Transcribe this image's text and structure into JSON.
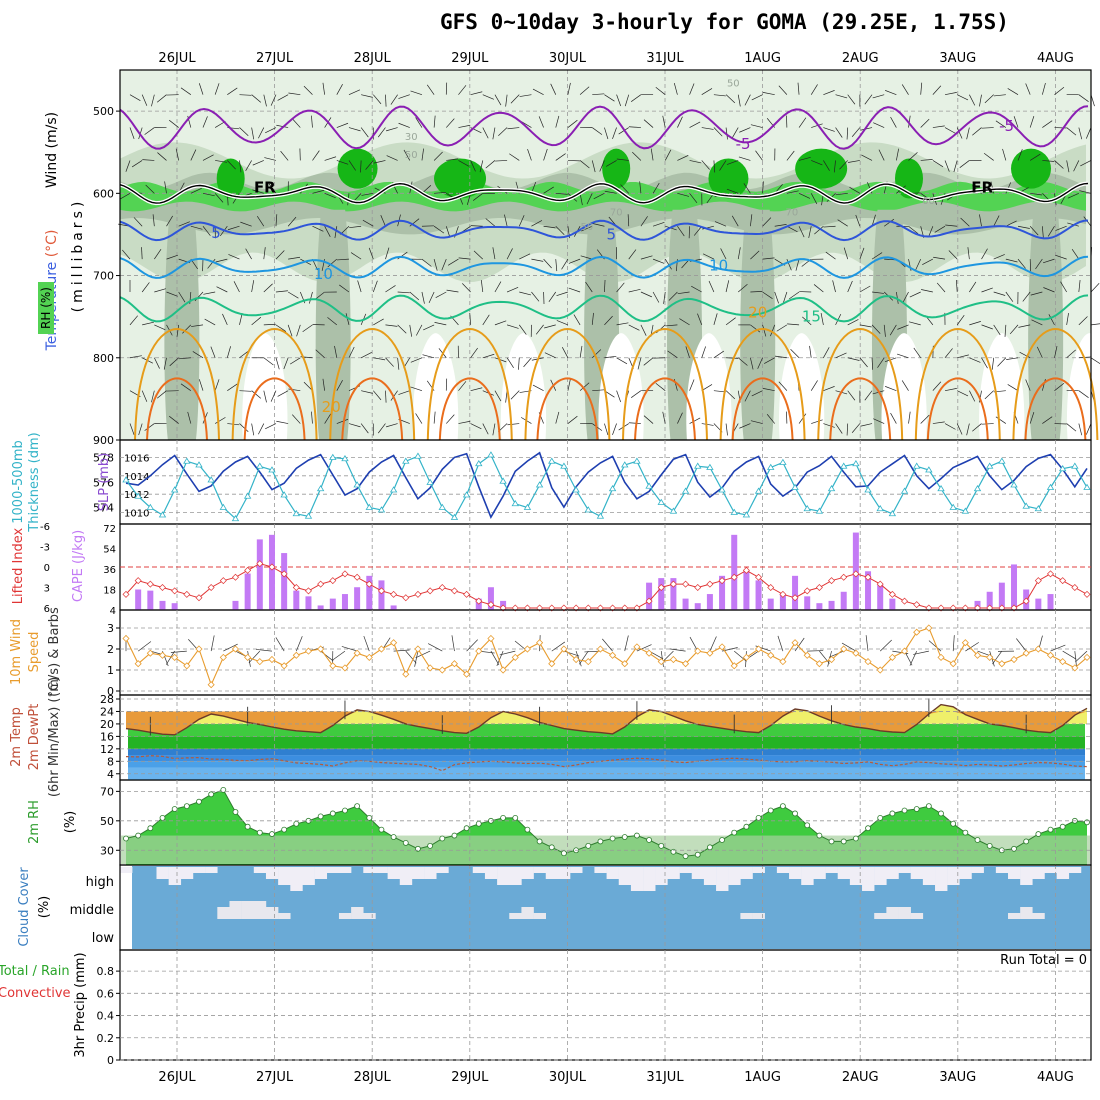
{
  "title": "GFS 0~10day 3-hourly for GOMA (29.25E, 1.75S)",
  "colors": {
    "grid": "#999999",
    "rh_light": "#e6f1e4",
    "rh_mid": "#c9dcc5",
    "rh_dark": "#acc0a9",
    "rh_green": "#53d353",
    "rh_bright": "#16b616",
    "temp_violet": "#8a1fb3",
    "temp_blue": "#2e55d9",
    "temp_sky": "#1e96e0",
    "temp_teal": "#1fbf86",
    "temp_amber": "#e69c1a",
    "temp_orange": "#ea6d1c",
    "freezing": "#000000",
    "slp": "#1e3fb0",
    "thickness": "#33b3c8",
    "cape": "#c37af5",
    "lifted": "#e03535",
    "wind10": "#e89c2e",
    "tmax_fill": "#e89a3a",
    "tmin_fill": "#efef6a",
    "td_fill": "#3c8ee0",
    "t_green": "#3fcb3f",
    "rh2m": "#3fcb3f",
    "cloud_sky": "#6aaad6",
    "cloud_white": "#f0eef6"
  },
  "chart_data": [
    {
      "type": "contour",
      "panel": "upper-air",
      "ylabel_parts": [
        "Wind",
        " (m/s)"
      ],
      "ylabel_parts2": [
        "Temperature",
        " (°C)"
      ],
      "ylabel_rh": "RH (%)",
      "yunit": "(millibars)",
      "categories": [
        "26JUL",
        "27JUL",
        "28JUL",
        "29JUL",
        "30JUL",
        "31JUL",
        "1AUG",
        "2AUG",
        "3AUG",
        "4AUG"
      ],
      "y_ticks": [
        500,
        600,
        700,
        800,
        900
      ],
      "ylim": [
        450,
        900
      ],
      "isotherm_labels": [
        {
          "text": "-5",
          "day": 5.8,
          "p": 540
        },
        {
          "text": "-5",
          "day": 8.5,
          "p": 518
        },
        {
          "text": "5",
          "day": 0.4,
          "p": 648
        },
        {
          "text": "5",
          "day": 4.45,
          "p": 650
        },
        {
          "text": "10",
          "day": 1.5,
          "p": 698
        },
        {
          "text": "10",
          "day": 5.55,
          "p": 688
        },
        {
          "text": "15",
          "day": 6.5,
          "p": 750
        },
        {
          "text": "20",
          "day": 1.58,
          "p": 860
        },
        {
          "text": "20",
          "day": 5.95,
          "p": 745
        },
        {
          "text": "FR",
          "day": 0.9,
          "p": 593
        },
        {
          "text": "FR",
          "day": 8.25,
          "p": 593
        }
      ],
      "rh_labels": [
        {
          "text": "30",
          "day": 2.4,
          "p": 530
        },
        {
          "text": "50",
          "day": 2.4,
          "p": 552
        },
        {
          "text": "70",
          "day": 4.5,
          "p": 622
        },
        {
          "text": "50",
          "day": 4.2,
          "p": 640
        },
        {
          "text": "70",
          "day": 6.3,
          "p": 622
        },
        {
          "text": "50",
          "day": 5.7,
          "p": 465
        },
        {
          "text": "60",
          "day": 7.7,
          "p": 608
        }
      ]
    },
    {
      "type": "line",
      "panel": "slp-thickness",
      "ylabel_left": [
        "1000-500mb",
        "Thickness (dm)"
      ],
      "ylabel_right": "SLP (mb)",
      "left_ticks": [
        574,
        576,
        578
      ],
      "right_ticks": [
        1010,
        1012,
        1014,
        1016
      ],
      "series": [
        {
          "name": "SLP",
          "values": [
            1013.2,
            1013.0,
            1014.0,
            1015.2,
            1016.2,
            1014.2,
            1012.3,
            1012.9,
            1014.5,
            1015.5,
            1016.1,
            1014.4,
            1012.5,
            1013.2,
            1014.8,
            1015.7,
            1016.3,
            1014.1,
            1011.9,
            1012.6,
            1014.4,
            1015.5,
            1016.2,
            1013.8,
            1011.5,
            1012.7,
            1014.7,
            1016.0,
            1016.4,
            1012.8,
            1009.5,
            1011.8,
            1014.5,
            1015.6,
            1016.5,
            1012.7,
            1010.6,
            1012.8,
            1014.4,
            1015.4,
            1016.1,
            1013.3,
            1011.5,
            1012.3,
            1014.1,
            1015.8,
            1016.3,
            1013.3,
            1011.7,
            1012.7,
            1014.5,
            1015.5,
            1016.1,
            1013.1,
            1011.8,
            1012.7,
            1014.4,
            1015.1,
            1016.1,
            1014.4,
            1012.8,
            1012.9,
            1014.4,
            1015.3,
            1016.2,
            1014.0,
            1012.6,
            1013.7,
            1014.9,
            1015.5,
            1016.1,
            1014.0,
            1012.5,
            1013.5,
            1015.0,
            1015.9,
            1016.3,
            1014.7,
            1012.8,
            1014.8
          ]
        },
        {
          "name": "Thickness",
          "values": [
            576.2,
            574.9,
            574.0,
            573.4,
            575.4,
            577.7,
            577.4,
            576.2,
            574.0,
            573.1,
            574.9,
            577.3,
            577.0,
            575.0,
            573.5,
            573.3,
            575.5,
            578.0,
            577.9,
            575.8,
            574.0,
            573.8,
            575.4,
            577.7,
            578.1,
            576.0,
            574.0,
            573.2,
            575.0,
            577.5,
            578.2,
            576.1,
            574.3,
            574.0,
            575.8,
            577.7,
            577.3,
            575.4,
            573.8,
            573.3,
            575.5,
            577.4,
            577.7,
            575.7,
            574.4,
            573.7,
            575.3,
            577.3,
            577.2,
            575.4,
            573.6,
            573.4,
            575.3,
            577.2,
            577.6,
            575.6,
            573.9,
            573.7,
            575.5,
            577.3,
            577.5,
            575.4,
            573.9,
            573.5,
            575.3,
            577.3,
            577.0,
            575.5,
            574.0,
            573.7,
            575.5,
            577.3,
            577.7,
            575.8,
            574.1,
            573.9,
            575.6,
            577.1,
            577.3,
            575.6
          ]
        }
      ]
    },
    {
      "type": "bar+line",
      "panel": "cape-lifted",
      "ylabel_left": "Lifted Index",
      "ylabel_right": "CAPE (J/kg)",
      "left_ticks": [
        -6,
        -3,
        0,
        3,
        6
      ],
      "right_ticks": [
        4,
        18,
        36,
        54,
        72
      ],
      "series": [
        {
          "name": "CAPE",
          "values": [
            0,
            18,
            17,
            8,
            6,
            0,
            0,
            0,
            0,
            8,
            32,
            62,
            66,
            50,
            17,
            12,
            4,
            10,
            14,
            20,
            30,
            26,
            4,
            0,
            0,
            0,
            0,
            0,
            0,
            10,
            20,
            8,
            0,
            0,
            0,
            0,
            0,
            0,
            0,
            0,
            0,
            0,
            0,
            24,
            28,
            28,
            10,
            6,
            14,
            30,
            66,
            34,
            26,
            10,
            14,
            30,
            12,
            6,
            8,
            16,
            68,
            34,
            22,
            10,
            0,
            0,
            0,
            0,
            0,
            0,
            8,
            16,
            24,
            40,
            18,
            10,
            14,
            0,
            0,
            0
          ]
        },
        {
          "name": "Lifted Index",
          "values": [
            4.0,
            2.0,
            2.5,
            3.0,
            3.5,
            4.0,
            4.5,
            3.0,
            2.0,
            1.5,
            0.5,
            -0.5,
            0.0,
            1.0,
            3.0,
            3.5,
            2.5,
            2.0,
            1.0,
            1.5,
            2.5,
            3.5,
            4.0,
            4.5,
            4.0,
            3.5,
            3.0,
            3.5,
            4.0,
            5.0,
            5.5,
            6.0,
            6.0,
            6.0,
            6.0,
            6.0,
            6.0,
            6.0,
            6.0,
            6.0,
            6.0,
            6.0,
            6.0,
            5.0,
            3.0,
            2.5,
            2.5,
            3.0,
            2.5,
            2.0,
            1.5,
            0.5,
            1.5,
            3.0,
            4.0,
            4.5,
            3.5,
            3.0,
            2.0,
            1.5,
            1.0,
            1.5,
            2.5,
            4.0,
            5.0,
            5.5,
            6.0,
            6.0,
            6.0,
            6.0,
            6.0,
            6.0,
            6.0,
            6.0,
            5.0,
            2.0,
            1.0,
            2.0,
            3.0,
            4.0
          ]
        }
      ]
    },
    {
      "type": "line",
      "panel": "wind10m",
      "ylabel": [
        "10m Wind",
        "Speed",
        "(m/s) & Barbs"
      ],
      "y_ticks": [
        0,
        1,
        2,
        3
      ],
      "values": [
        2.5,
        1.3,
        1.8,
        1.7,
        1.6,
        1.2,
        2.0,
        0.3,
        1.6,
        2.0,
        1.6,
        1.4,
        1.5,
        1.2,
        1.7,
        1.9,
        2.0,
        1.2,
        1.1,
        1.8,
        1.6,
        2.0,
        2.3,
        0.8,
        2.0,
        1.1,
        1.0,
        1.3,
        0.8,
        1.9,
        2.5,
        1.0,
        1.6,
        2.0,
        2.3,
        1.3,
        2.0,
        1.5,
        1.4,
        2.0,
        1.7,
        1.3,
        2.1,
        1.8,
        1.4,
        1.5,
        1.3,
        1.9,
        1.8,
        2.1,
        1.2,
        1.6,
        2.0,
        1.7,
        1.4,
        2.3,
        1.7,
        1.3,
        1.5,
        2.0,
        1.8,
        1.4,
        1.0,
        1.6,
        1.9,
        2.8,
        3.0,
        1.6,
        1.3,
        2.3,
        1.7,
        1.6,
        1.3,
        1.5,
        1.8,
        2.0,
        1.7,
        1.4,
        1.1,
        1.6
      ]
    },
    {
      "type": "area",
      "panel": "temp",
      "ylabel": [
        "2m Temp",
        "2m DewPt",
        "(6hr Min/Max) (°C)"
      ],
      "y_ticks": [
        4,
        8,
        12,
        16,
        20,
        24,
        28
      ],
      "series": [
        {
          "name": "Temp",
          "values": [
            18.5,
            18.0,
            17.3,
            16.7,
            16.5,
            18.8,
            21.5,
            23.2,
            22.5,
            21.5,
            20.5,
            19.8,
            19.0,
            18.3,
            17.8,
            17.5,
            17.2,
            19.5,
            22.5,
            24.5,
            24.0,
            22.8,
            21.5,
            20.0,
            19.2,
            18.5,
            17.8,
            17.2,
            17.0,
            19.0,
            22.0,
            24.0,
            23.2,
            22.0,
            20.5,
            19.5,
            18.5,
            18.0,
            17.5,
            17.2,
            16.8,
            19.0,
            22.3,
            24.5,
            24.0,
            22.5,
            21.0,
            19.8,
            19.2,
            18.6,
            18.0,
            17.5,
            17.2,
            19.5,
            22.5,
            24.8,
            24.2,
            22.5,
            21.0,
            19.8,
            19.0,
            18.5,
            17.8,
            17.4,
            17.2,
            19.8,
            23.2,
            26.2,
            25.5,
            23.0,
            21.5,
            20.0,
            19.5,
            18.8,
            18.0,
            17.5,
            17.2,
            19.5,
            22.8,
            25.0
          ]
        },
        {
          "name": "DewPt",
          "values": [
            9.5,
            9.4,
            9.8,
            9.6,
            8.9,
            9.1,
            9.2,
            8.7,
            8.6,
            8.3,
            8.2,
            8.6,
            8.8,
            8.2,
            7.5,
            7.3,
            7.0,
            6.5,
            7.5,
            8.2,
            8.0,
            7.6,
            7.4,
            7.2,
            7.0,
            6.3,
            5.0,
            6.9,
            7.5,
            7.8,
            8.0,
            7.8,
            7.5,
            7.3,
            7.4,
            7.0,
            6.3,
            6.8,
            7.6,
            8.0,
            8.4,
            8.7,
            9.0,
            8.8,
            8.4,
            7.8,
            7.6,
            8.0,
            8.4,
            8.8,
            9.0,
            8.7,
            8.4,
            8.0,
            7.8,
            7.8,
            8.2,
            8.0,
            7.7,
            7.3,
            7.5,
            7.8,
            7.0,
            6.6,
            7.0,
            7.8,
            7.6,
            7.2,
            7.0,
            6.6,
            7.0,
            6.8,
            6.5,
            6.8,
            7.3,
            7.6,
            7.5,
            7.1,
            6.5,
            6.3
          ]
        }
      ]
    },
    {
      "type": "area",
      "panel": "rh2m",
      "ylabel": "2m RH",
      "yunit": "(%)",
      "y_ticks": [
        30,
        50,
        70
      ],
      "values": [
        38,
        40,
        45,
        52,
        58,
        60,
        63,
        68,
        71,
        56,
        46,
        42,
        41,
        44,
        48,
        50,
        53,
        55,
        57,
        60,
        52,
        44,
        39,
        35,
        31,
        33,
        38,
        40,
        45,
        48,
        50,
        52,
        52,
        44,
        36,
        32,
        28,
        30,
        33,
        36,
        38,
        39,
        40,
        37,
        33,
        29,
        26,
        27,
        32,
        37,
        42,
        46,
        52,
        57,
        60,
        55,
        47,
        40,
        36,
        36,
        38,
        45,
        52,
        55,
        57,
        58,
        60,
        55,
        48,
        42,
        37,
        33,
        30,
        31,
        36,
        41,
        44,
        46,
        50,
        49
      ]
    },
    {
      "type": "area",
      "panel": "cloud",
      "ylabel": "Cloud Cover",
      "yunit": "(%)",
      "levels": [
        "high",
        "middle",
        "low"
      ]
    },
    {
      "type": "bar",
      "panel": "precip",
      "ylabel_parts": [
        "Total / Rain",
        "Convective"
      ],
      "yunit": "3hr Precip (mm)",
      "y_ticks": [
        0,
        0.2,
        0.4,
        0.6,
        0.8
      ],
      "y_tick_labels": [
        "0",
        "0.2",
        "0.4",
        "0.6",
        "0.8"
      ],
      "ylim": [
        0,
        0.9
      ],
      "run_total": "Run Total = 0"
    }
  ]
}
